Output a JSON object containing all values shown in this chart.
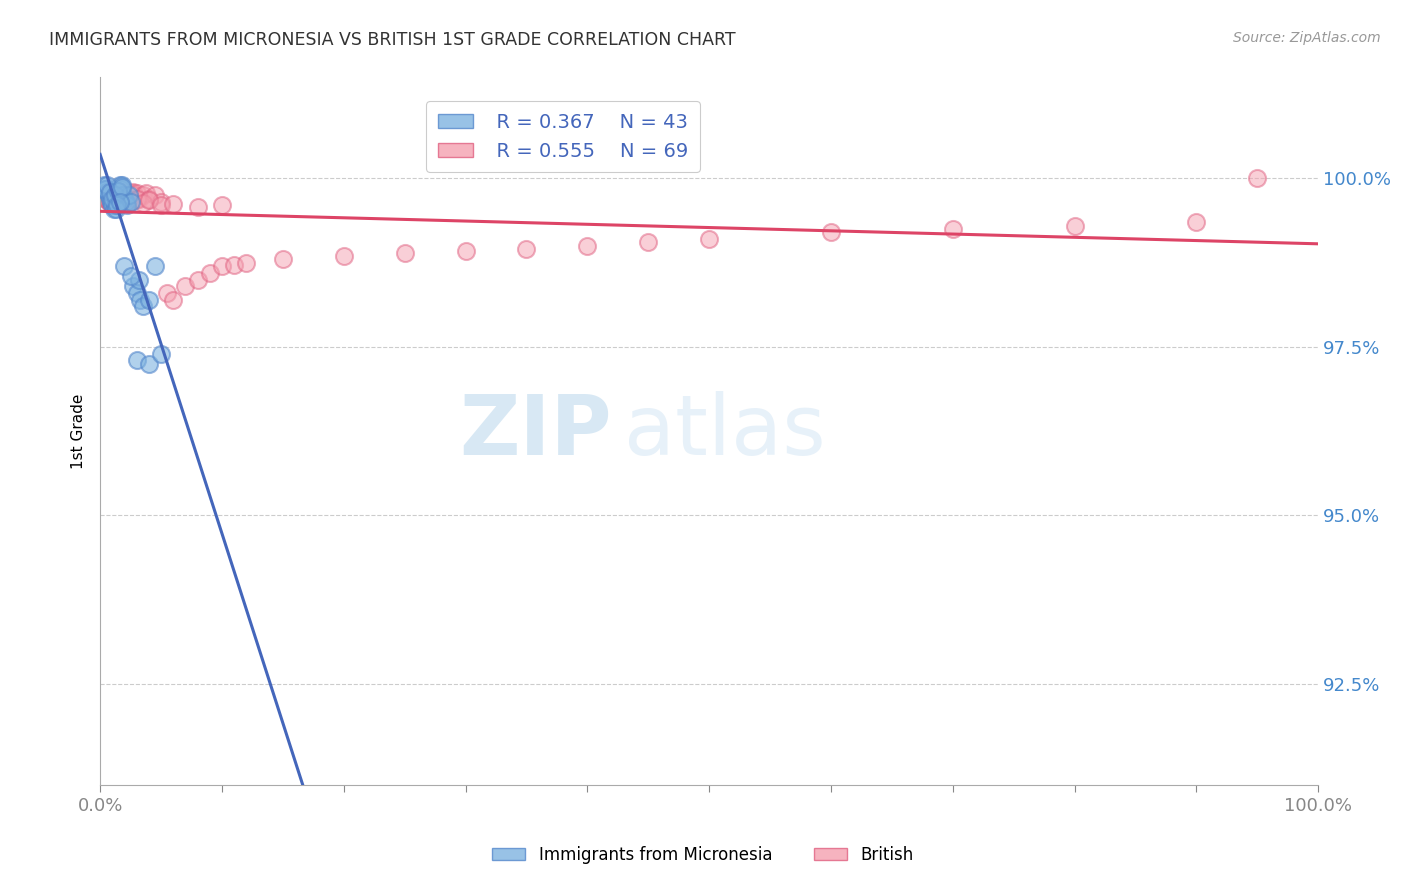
{
  "title": "IMMIGRANTS FROM MICRONESIA VS BRITISH 1ST GRADE CORRELATION CHART",
  "source": "Source: ZipAtlas.com",
  "ylabel": "1st Grade",
  "ytick_labels": [
    "100.0%",
    "97.5%",
    "95.0%",
    "92.5%"
  ],
  "ytick_values": [
    100.0,
    97.5,
    95.0,
    92.5
  ],
  "xlim": [
    0.0,
    100.0
  ],
  "ylim": [
    91.0,
    101.5
  ],
  "legend_blue_r": "R = 0.367",
  "legend_blue_n": "N = 43",
  "legend_pink_r": "R = 0.555",
  "legend_pink_n": "N = 69",
  "blue_color": "#7EB3E0",
  "pink_color": "#F4A0B0",
  "blue_edge_color": "#5588CC",
  "pink_edge_color": "#E06080",
  "blue_line_color": "#4466BB",
  "pink_line_color": "#DD4466",
  "watermark_zip": "ZIP",
  "watermark_atlas": "atlas",
  "blue_x": [
    0.3,
    0.5,
    0.6,
    0.7,
    0.8,
    0.9,
    1.0,
    1.1,
    1.2,
    1.3,
    1.4,
    1.5,
    1.6,
    1.7,
    1.8,
    1.9,
    2.0,
    2.1,
    2.2,
    2.4,
    2.5,
    2.7,
    3.0,
    3.2,
    3.3,
    3.5,
    4.0,
    4.5,
    0.4,
    0.6,
    0.8,
    1.0,
    1.2,
    1.5,
    1.8,
    2.0,
    2.5,
    3.0,
    4.0,
    5.0,
    1.3,
    1.4,
    1.6
  ],
  "blue_y": [
    99.9,
    99.85,
    99.8,
    99.75,
    99.7,
    99.65,
    99.6,
    99.55,
    99.6,
    99.65,
    99.7,
    99.75,
    99.9,
    99.85,
    99.9,
    99.75,
    99.7,
    99.65,
    99.6,
    99.75,
    99.65,
    98.4,
    98.3,
    98.5,
    98.2,
    98.1,
    98.2,
    98.7,
    99.85,
    99.9,
    99.8,
    99.7,
    99.75,
    99.82,
    99.88,
    98.7,
    98.55,
    97.3,
    97.25,
    97.4,
    99.55,
    99.6,
    99.65
  ],
  "pink_x": [
    0.3,
    0.5,
    0.6,
    0.7,
    0.8,
    0.9,
    1.0,
    1.1,
    1.2,
    1.3,
    1.4,
    1.5,
    1.6,
    1.7,
    1.8,
    1.9,
    2.0,
    2.1,
    2.2,
    2.3,
    2.4,
    2.5,
    2.6,
    2.7,
    2.8,
    3.0,
    3.2,
    3.5,
    3.8,
    4.0,
    4.5,
    5.0,
    5.5,
    6.0,
    7.0,
    8.0,
    9.0,
    10.0,
    11.0,
    12.0,
    15.0,
    20.0,
    25.0,
    30.0,
    35.0,
    40.0,
    45.0,
    50.0,
    60.0,
    70.0,
    80.0,
    90.0,
    0.4,
    0.6,
    0.8,
    1.0,
    1.2,
    1.5,
    1.8,
    2.0,
    2.5,
    3.0,
    3.5,
    4.0,
    5.0,
    6.0,
    8.0,
    10.0,
    95.0
  ],
  "pink_y": [
    99.75,
    99.7,
    99.68,
    99.72,
    99.65,
    99.6,
    99.65,
    99.68,
    99.72,
    99.65,
    99.68,
    99.7,
    99.72,
    99.68,
    99.7,
    99.72,
    99.8,
    99.75,
    99.78,
    99.68,
    99.72,
    99.75,
    99.78,
    99.8,
    99.75,
    99.78,
    99.7,
    99.75,
    99.78,
    99.7,
    99.75,
    99.65,
    98.3,
    98.2,
    98.4,
    98.5,
    98.6,
    98.7,
    98.72,
    98.75,
    98.8,
    98.85,
    98.9,
    98.92,
    98.95,
    99.0,
    99.05,
    99.1,
    99.2,
    99.25,
    99.3,
    99.35,
    99.73,
    99.69,
    99.67,
    99.62,
    99.66,
    99.69,
    99.71,
    99.73,
    99.67,
    99.69,
    99.64,
    99.68,
    99.6,
    99.62,
    99.58,
    99.6,
    100.0
  ]
}
